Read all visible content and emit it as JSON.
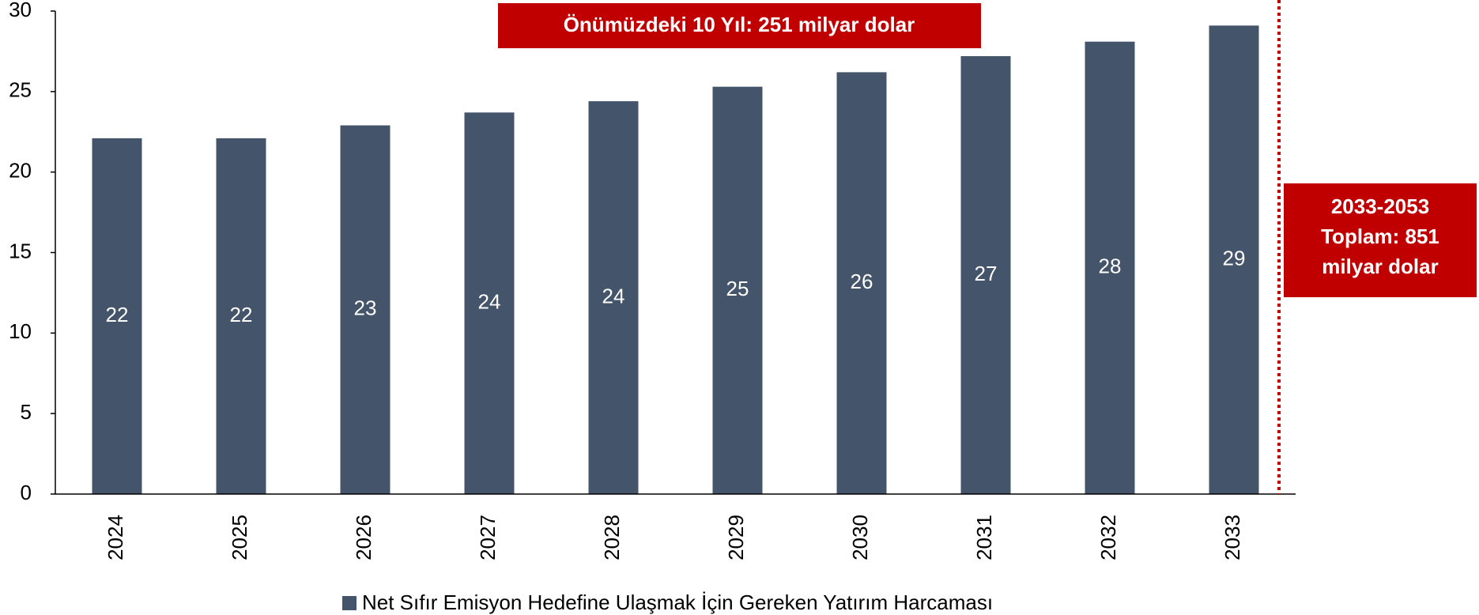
{
  "chart_data": {
    "type": "bar",
    "categories": [
      "2024",
      "2025",
      "2026",
      "2027",
      "2028",
      "2029",
      "2030",
      "2031",
      "2032",
      "2033"
    ],
    "series": [
      {
        "name": "Net Sıfır Emisyon Hedefine Ulaşmak İçin Gereken Yatırım Harcaması",
        "color": "#44546a",
        "values": [
          22.1,
          22.1,
          22.9,
          23.7,
          24.4,
          25.3,
          26.2,
          27.2,
          28.1,
          29.1
        ],
        "value_labels": [
          "22",
          "22",
          "23",
          "24",
          "24",
          "25",
          "26",
          "27",
          "28",
          "29"
        ]
      }
    ],
    "ylim": [
      0,
      30
    ],
    "yticks": [
      0,
      5,
      10,
      15,
      20,
      25,
      30
    ],
    "annotations": [
      {
        "text": "Önümüzdeki 10 Yıl: 251 milyar dolar",
        "color": "#c00000"
      },
      {
        "lines": [
          "2033-2053",
          "Toplam: 851",
          "milyar dolar"
        ],
        "color": "#c00000"
      }
    ],
    "legend": "bottom"
  }
}
